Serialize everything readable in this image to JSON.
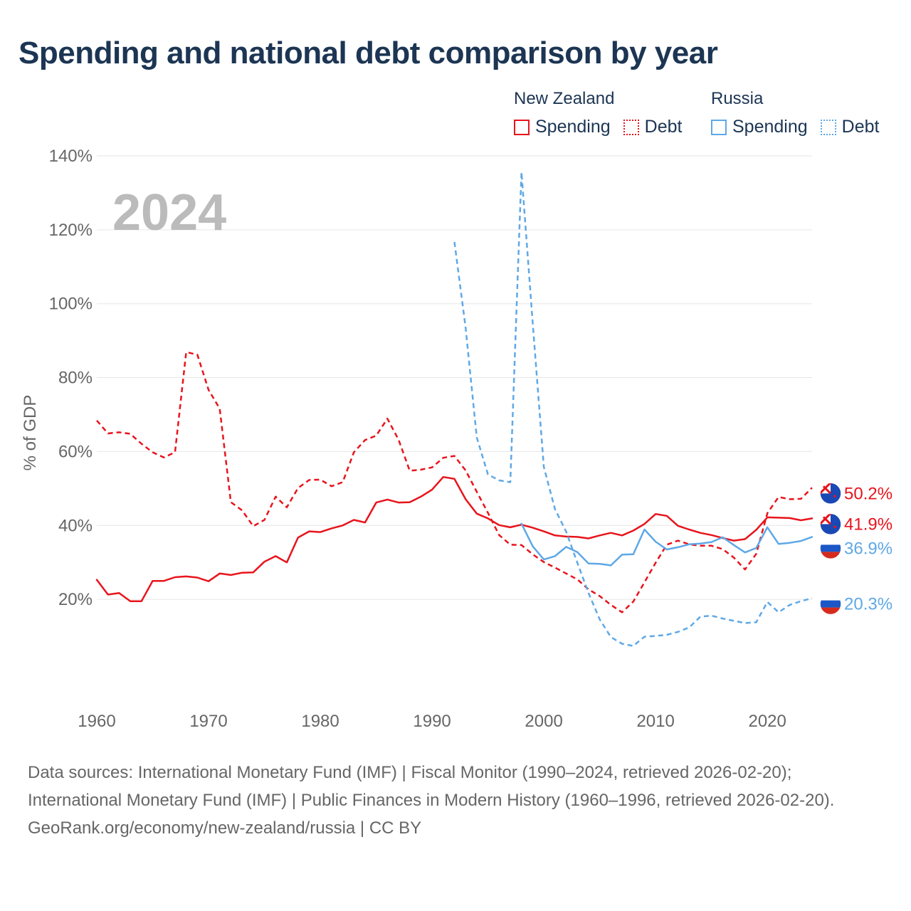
{
  "title": "Spending and national debt comparison by year",
  "legend": {
    "new_zealand": {
      "country": "New Zealand",
      "spending_label": "Spending",
      "debt_label": "Debt"
    },
    "russia": {
      "country": "Russia",
      "spending_label": "Spending",
      "debt_label": "Debt"
    }
  },
  "colors": {
    "new_zealand": "#e8141c",
    "russia": "#5fa8e6",
    "title": "#1c3553",
    "year_watermark": "#bbbbbb"
  },
  "chart_data": {
    "type": "line",
    "year_watermark": "2024",
    "ylabel": "% of GDP",
    "xlabel": "",
    "xlim": [
      1960,
      2024
    ],
    "ylim": [
      0,
      145
    ],
    "x_ticks": [
      1960,
      1970,
      1980,
      1990,
      2000,
      2010,
      2020
    ],
    "x_tick_labels": [
      "1960",
      "1970",
      "1980",
      "1990",
      "2000",
      "2010",
      "2020"
    ],
    "y_ticks": [
      20,
      40,
      60,
      80,
      100,
      120,
      140
    ],
    "y_tick_labels": [
      "20%",
      "40%",
      "60%",
      "80%",
      "100%",
      "120%",
      "140%"
    ],
    "grid": true,
    "series": [
      {
        "name": "New Zealand Spending",
        "country": "new_zealand",
        "style": "solid",
        "end_label": "41.9%",
        "x": [
          1960,
          1961,
          1962,
          1963,
          1964,
          1965,
          1966,
          1967,
          1968,
          1969,
          1970,
          1971,
          1972,
          1973,
          1974,
          1975,
          1976,
          1977,
          1978,
          1979,
          1980,
          1981,
          1982,
          1983,
          1984,
          1985,
          1986,
          1987,
          1988,
          1989,
          1990,
          1991,
          1992,
          1993,
          1994,
          1995,
          1996,
          1997,
          1998,
          1999,
          2000,
          2001,
          2002,
          2003,
          2004,
          2005,
          2006,
          2007,
          2008,
          2009,
          2010,
          2011,
          2012,
          2013,
          2014,
          2015,
          2016,
          2017,
          2018,
          2019,
          2020,
          2021,
          2022,
          2023,
          2024
        ],
        "values": [
          25.3,
          21.3,
          21.7,
          19.5,
          19.5,
          25,
          25,
          26,
          26.2,
          25.9,
          24.9,
          27,
          26.6,
          27.2,
          27.3,
          30.2,
          31.7,
          30,
          36.7,
          38.4,
          38.2,
          39.2,
          40,
          41.5,
          40.8,
          46.2,
          47,
          46.2,
          46.3,
          47.8,
          49.7,
          53.1,
          52.6,
          47.1,
          43.2,
          41.9,
          40.1,
          39.5,
          40.2,
          39.4,
          38.4,
          37.3,
          37,
          36.9,
          36.5,
          37.3,
          38,
          37.3,
          38.6,
          40.4,
          43.1,
          42.6,
          39.9,
          38.9,
          38,
          37.4,
          36.6,
          35.9,
          36.3,
          38.8,
          42.2,
          42.1,
          42,
          41.4,
          41.9
        ]
      },
      {
        "name": "New Zealand Debt",
        "country": "new_zealand",
        "style": "dashed",
        "end_label": "50.2%",
        "x": [
          1960,
          1961,
          1962,
          1963,
          1964,
          1965,
          1966,
          1967,
          1968,
          1969,
          1970,
          1971,
          1972,
          1973,
          1974,
          1975,
          1976,
          1977,
          1978,
          1979,
          1980,
          1981,
          1982,
          1983,
          1984,
          1985,
          1986,
          1987,
          1988,
          1989,
          1990,
          1991,
          1992,
          1993,
          1994,
          1995,
          1996,
          1997,
          1998,
          1999,
          2000,
          2001,
          2002,
          2003,
          2004,
          2005,
          2006,
          2007,
          2008,
          2009,
          2010,
          2011,
          2012,
          2013,
          2014,
          2015,
          2016,
          2017,
          2018,
          2019,
          2020,
          2021,
          2022,
          2023,
          2024
        ],
        "values": [
          68.4,
          64.9,
          65.2,
          64.8,
          62.1,
          59.8,
          58.4,
          59.8,
          86.9,
          86.2,
          76.7,
          71.6,
          46.3,
          44.1,
          39.8,
          41.5,
          47.8,
          44.9,
          50.1,
          52.3,
          52.4,
          50.6,
          51.7,
          59.8,
          63.1,
          64.3,
          68.9,
          63.2,
          54.8,
          55.1,
          55.7,
          58.3,
          58.8,
          54.9,
          49.1,
          43.4,
          37.4,
          34.8,
          34.7,
          32.2,
          30.1,
          28.6,
          27,
          25.4,
          22.7,
          20.9,
          18.5,
          16.5,
          19.4,
          24.6,
          29.9,
          34.8,
          35.9,
          34.9,
          34.5,
          34.5,
          33.6,
          31.3,
          28.1,
          32.3,
          43.3,
          47.7,
          47.1,
          47.2,
          50.2
        ]
      },
      {
        "name": "Russia Spending",
        "country": "russia",
        "style": "solid",
        "end_label": "36.9%",
        "x": [
          1998,
          1999,
          2000,
          2001,
          2002,
          2003,
          2004,
          2005,
          2006,
          2007,
          2008,
          2009,
          2010,
          2011,
          2012,
          2013,
          2014,
          2015,
          2016,
          2017,
          2018,
          2019,
          2020,
          2021,
          2022,
          2023,
          2024
        ],
        "values": [
          40.5,
          34.4,
          30.8,
          31.7,
          34.2,
          32.8,
          29.7,
          29.6,
          29.2,
          32.1,
          32.2,
          38.9,
          35.6,
          33.5,
          34.1,
          34.9,
          35.1,
          35.5,
          36.8,
          34.7,
          32.7,
          33.9,
          39.5,
          35,
          35.3,
          35.8,
          36.9
        ]
      },
      {
        "name": "Russia Debt",
        "country": "russia",
        "style": "dashed",
        "end_label": "20.3%",
        "x": [
          1992,
          1993,
          1994,
          1995,
          1996,
          1997,
          1998,
          1999,
          2000,
          2001,
          2002,
          2003,
          2004,
          2005,
          2006,
          2007,
          2008,
          2009,
          2010,
          2011,
          2012,
          2013,
          2014,
          2015,
          2016,
          2017,
          2018,
          2019,
          2020,
          2021,
          2022,
          2023,
          2024
        ],
        "values": [
          116.7,
          93.5,
          63.8,
          53.8,
          52.2,
          51.7,
          135.6,
          95,
          55.8,
          44.4,
          38.3,
          29.9,
          21.7,
          14.6,
          9.8,
          8,
          7.4,
          9.9,
          10.1,
          10.4,
          11.2,
          12.4,
          15.3,
          15.6,
          14.8,
          14.2,
          13.6,
          13.8,
          19.3,
          16.5,
          18.5,
          19.5,
          20.3
        ]
      }
    ]
  },
  "footer": {
    "sources": "Data sources: International Monetary Fund (IMF) | Fiscal Monitor (1990–2024, retrieved 2026-02-20); International Monetary Fund (IMF) | Public Finances in Modern History (1960–1996, retrieved 2026-02-20).",
    "attribution": "GeoRank.org/economy/new-zealand/russia | CC BY"
  }
}
